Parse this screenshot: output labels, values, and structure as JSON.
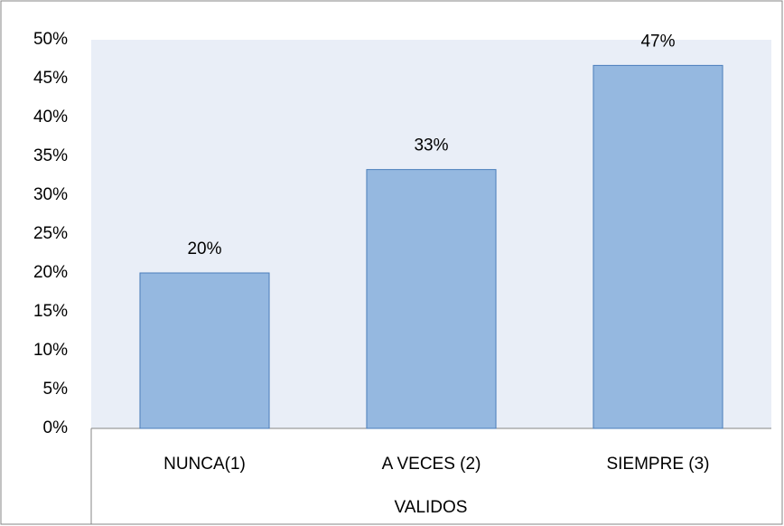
{
  "chart_data": {
    "type": "bar",
    "x_label": "VALIDOS",
    "categories": [
      "NUNCA(1)",
      "A VECES (2)",
      "SIEMPRE (3)"
    ],
    "values": [
      20,
      33.3,
      46.7
    ],
    "value_labels": [
      "20%",
      "33%",
      "47%"
    ],
    "color": "#95b8e0",
    "ylim": [
      0,
      50
    ],
    "yticks": [
      {
        "value": 0,
        "label": "0%"
      },
      {
        "value": 5,
        "label": "5%"
      },
      {
        "value": 10,
        "label": "10%"
      },
      {
        "value": 15,
        "label": "15%"
      },
      {
        "value": 20,
        "label": "20%"
      },
      {
        "value": 25,
        "label": "25%"
      },
      {
        "value": 30,
        "label": "30%"
      },
      {
        "value": 35,
        "label": "35%"
      },
      {
        "value": 40,
        "label": "40%"
      },
      {
        "value": 45,
        "label": "45%"
      },
      {
        "value": 50,
        "label": "50%"
      }
    ],
    "grid": false
  }
}
